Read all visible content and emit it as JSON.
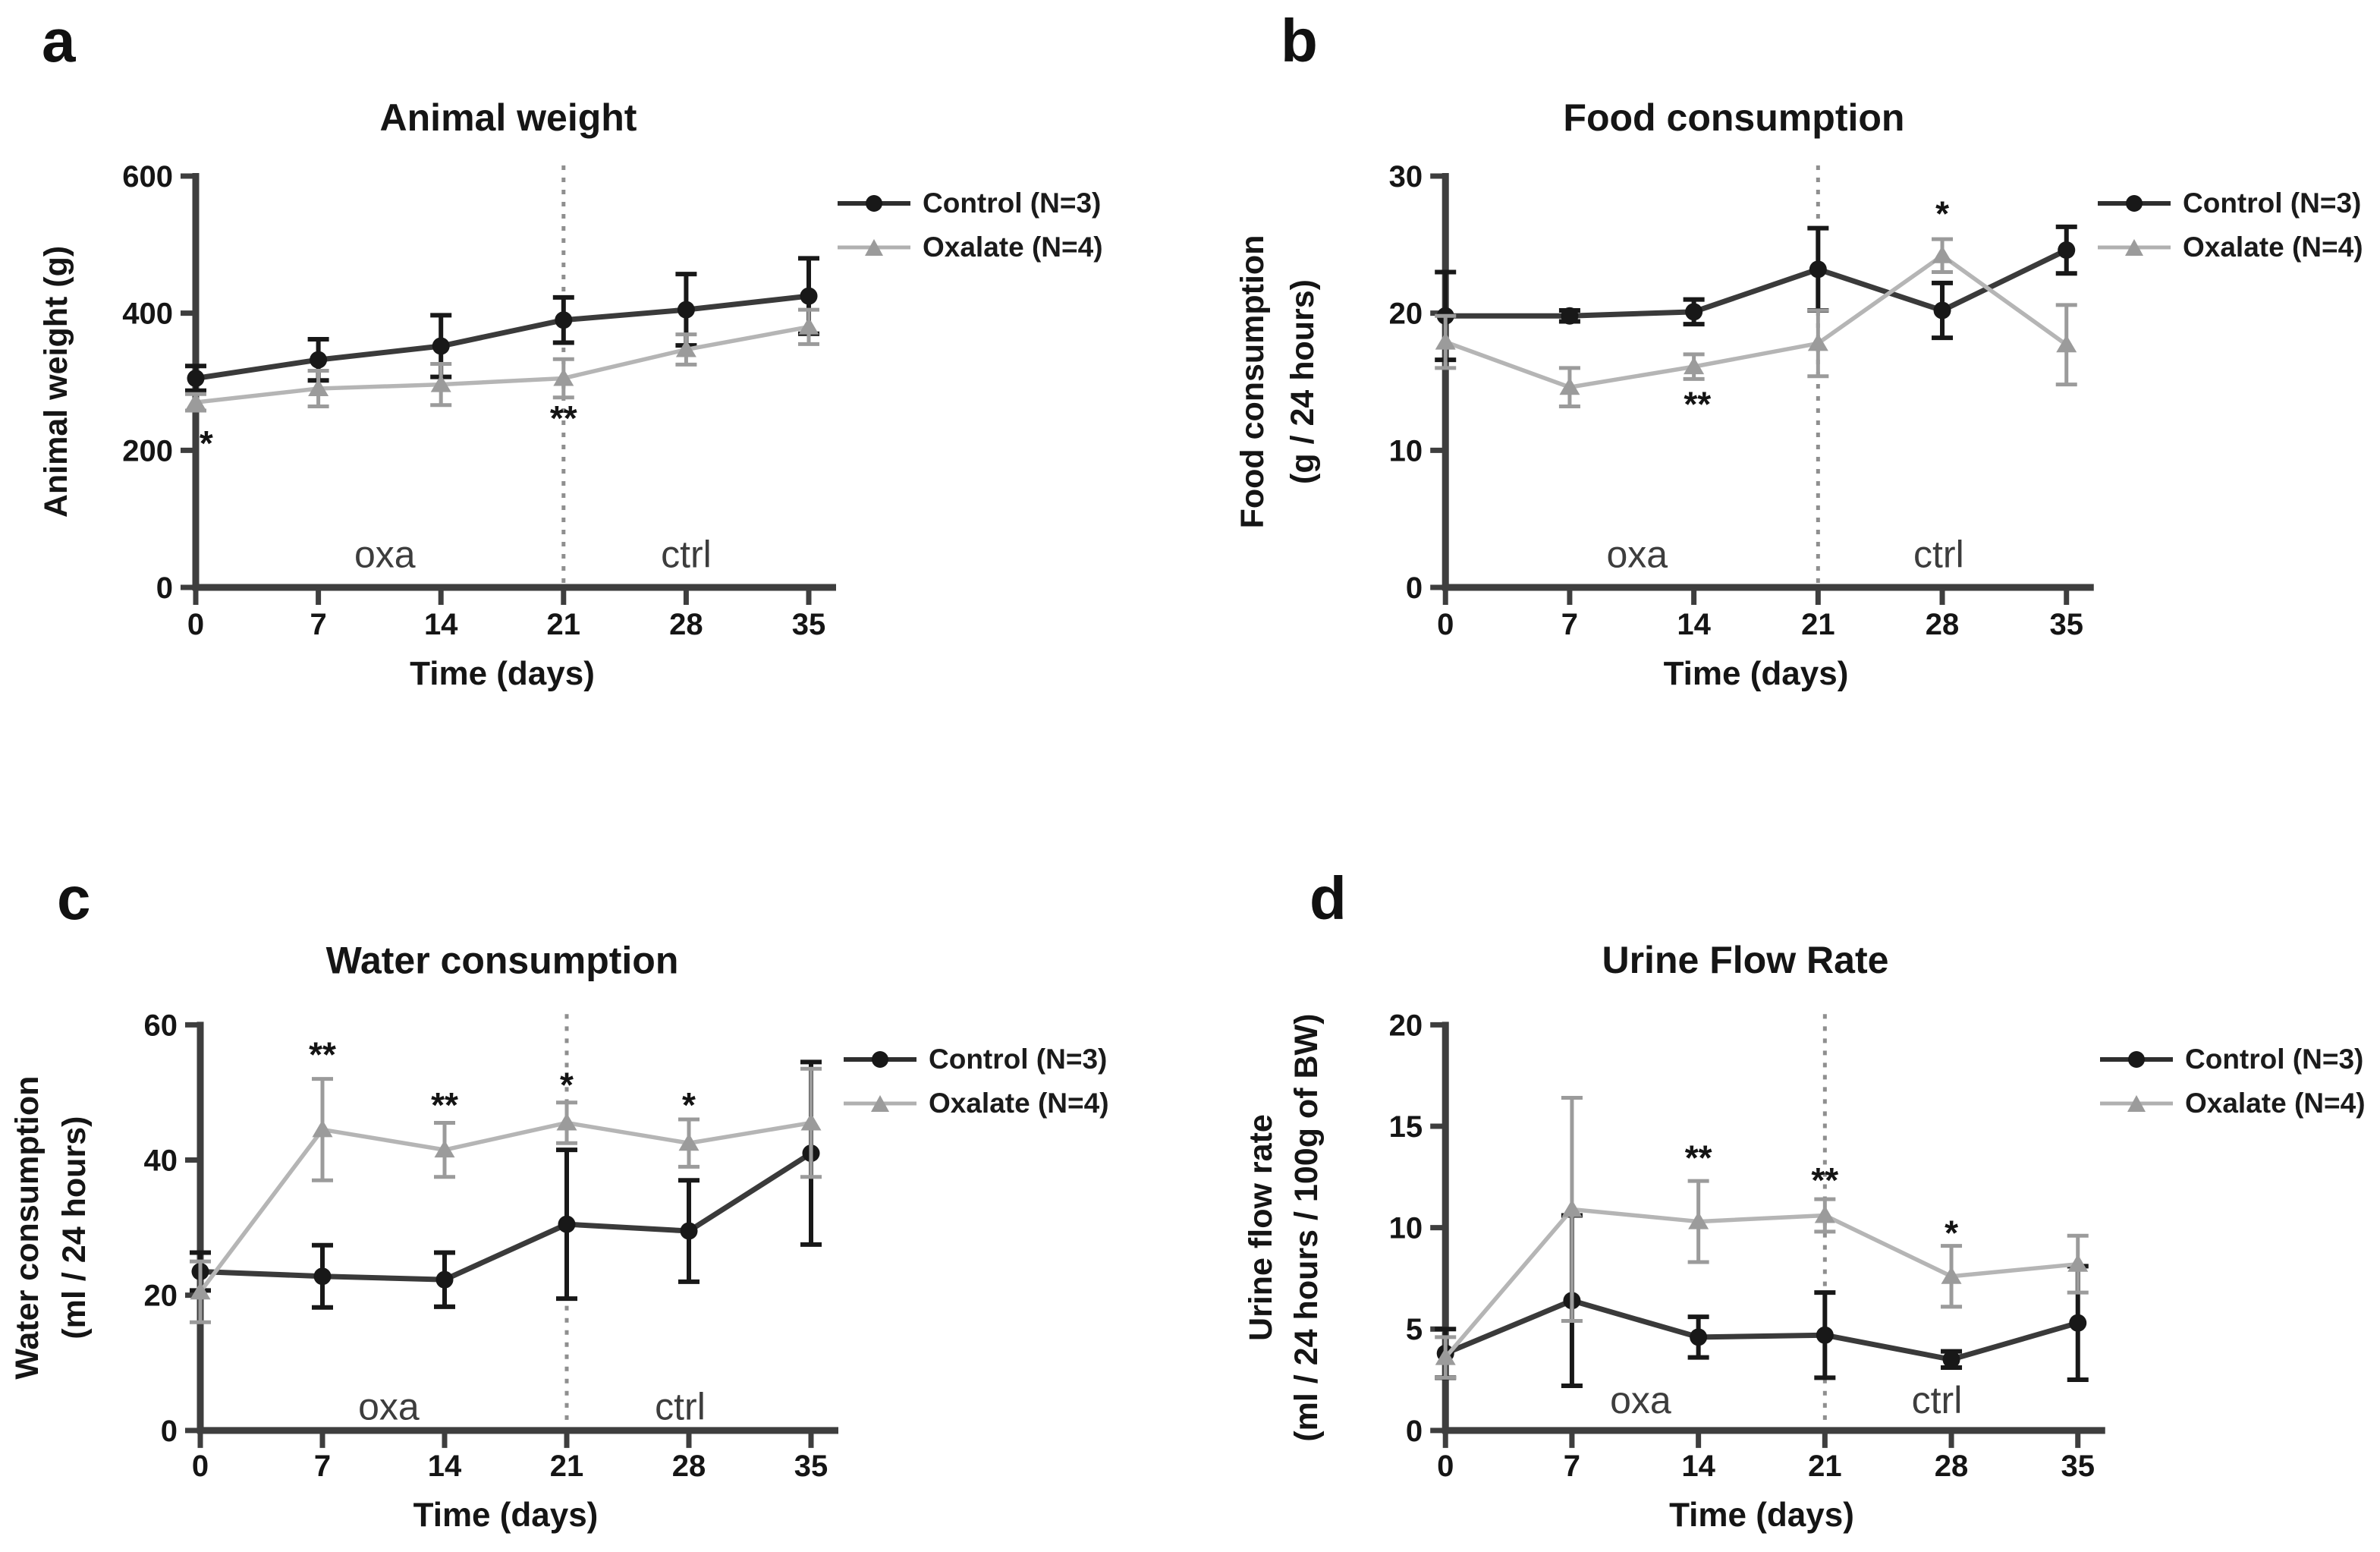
{
  "figure": {
    "background_color": "#ffffff",
    "axis_color": "#3e3e3e",
    "text_color": "#151515",
    "phase_label_color": "#3d3d3d",
    "dotted_line_color": "#8f8f8f"
  },
  "chart_data": [
    {
      "panel_letter": "a",
      "type": "line",
      "title": "Animal weight",
      "xlabel": "Time (days)",
      "ylabel_lines": [
        "Animal weight (g)"
      ],
      "x": [
        0,
        7,
        14,
        21,
        28,
        35
      ],
      "xticks": [
        0,
        7,
        14,
        21,
        28,
        35
      ],
      "yticks": [
        0,
        200,
        400,
        600
      ],
      "xlim": [
        0,
        35
      ],
      "ylim": [
        0,
        600
      ],
      "grid": false,
      "legend_position": "right",
      "treatment_switch_x": 21,
      "phase_labels": [
        {
          "text": "oxa",
          "x": 10.8,
          "y": 48
        },
        {
          "text": "ctrl",
          "x": 28,
          "y": 48
        }
      ],
      "significance": [
        {
          "text": "*",
          "x": 0.6,
          "y": 209
        },
        {
          "text": "**",
          "x": 21,
          "y": 246
        }
      ],
      "series": [
        {
          "name": "Control (N=3)",
          "marker": "circle",
          "color": "#181818",
          "line_color": "#3a3a3a",
          "values": [
            305,
            332,
            352,
            390,
            405,
            425
          ],
          "errors": [
            18,
            30,
            45,
            33,
            52,
            55
          ]
        },
        {
          "name": "Oxalate (N=4)",
          "marker": "triangle",
          "color": "#9b9b9b",
          "line_color": "#b5b5b5",
          "values": [
            270,
            290,
            296,
            305,
            347,
            380
          ],
          "errors": [
            12,
            26,
            30,
            28,
            22,
            25
          ]
        }
      ]
    },
    {
      "panel_letter": "b",
      "type": "line",
      "title": "Food consumption",
      "xlabel": "Time (days)",
      "ylabel_lines": [
        "Food consumption",
        "(g / 24 hours)"
      ],
      "x": [
        0,
        7,
        14,
        21,
        28,
        35
      ],
      "xticks": [
        0,
        7,
        14,
        21,
        28,
        35
      ],
      "yticks": [
        0,
        10,
        20,
        30
      ],
      "xlim": [
        0,
        35
      ],
      "ylim": [
        0,
        30
      ],
      "grid": false,
      "legend_position": "right",
      "treatment_switch_x": 21,
      "phase_labels": [
        {
          "text": "oxa",
          "x": 10.8,
          "y": 2.4
        },
        {
          "text": "ctrl",
          "x": 27.8,
          "y": 2.4
        }
      ],
      "significance": [
        {
          "text": "**",
          "x": 14.2,
          "y": 13.3
        },
        {
          "text": "*",
          "x": 28,
          "y": 27.2
        }
      ],
      "series": [
        {
          "name": "Control (N=3)",
          "marker": "circle",
          "color": "#181818",
          "line_color": "#3a3a3a",
          "values": [
            19.8,
            19.8,
            20.1,
            23.2,
            20.2,
            24.6
          ],
          "errors": [
            3.2,
            0.4,
            0.9,
            3.0,
            2.0,
            1.7
          ]
        },
        {
          "name": "Oxalate (N=4)",
          "marker": "triangle",
          "color": "#9b9b9b",
          "line_color": "#b5b5b5",
          "values": [
            17.9,
            14.6,
            16.1,
            17.8,
            24.2,
            17.7
          ],
          "errors": [
            1.9,
            1.4,
            0.9,
            2.4,
            1.2,
            2.9
          ]
        }
      ]
    },
    {
      "panel_letter": "c",
      "type": "line",
      "title": "Water consumption",
      "xlabel": "Time (days)",
      "ylabel_lines": [
        "Water consumption",
        "(ml / 24 hours)"
      ],
      "x": [
        0,
        7,
        14,
        21,
        28,
        35
      ],
      "xticks": [
        0,
        7,
        14,
        21,
        28,
        35
      ],
      "yticks": [
        0,
        20,
        40,
        60
      ],
      "xlim": [
        0,
        35
      ],
      "ylim": [
        0,
        60
      ],
      "grid": false,
      "legend_position": "right",
      "treatment_switch_x": 21,
      "phase_labels": [
        {
          "text": "oxa",
          "x": 10.8,
          "y": 3.5
        },
        {
          "text": "ctrl",
          "x": 27.5,
          "y": 3.5
        }
      ],
      "significance": [
        {
          "text": "**",
          "x": 7,
          "y": 55.5
        },
        {
          "text": "**",
          "x": 14,
          "y": 48
        },
        {
          "text": "*",
          "x": 21,
          "y": 51
        },
        {
          "text": "*",
          "x": 28,
          "y": 48
        }
      ],
      "series": [
        {
          "name": "Control (N=3)",
          "marker": "circle",
          "color": "#181818",
          "line_color": "#3a3a3a",
          "values": [
            23.5,
            22.8,
            22.3,
            30.5,
            29.5,
            41.0
          ],
          "errors": [
            2.8,
            4.6,
            4.0,
            11.0,
            7.5,
            13.5
          ]
        },
        {
          "name": "Oxalate (N=4)",
          "marker": "triangle",
          "color": "#9b9b9b",
          "line_color": "#b5b5b5",
          "values": [
            20.5,
            44.5,
            41.5,
            45.5,
            42.5,
            45.5
          ],
          "errors": [
            4.5,
            7.5,
            4.0,
            3.0,
            3.5,
            8.0
          ]
        }
      ]
    },
    {
      "panel_letter": "d",
      "type": "line",
      "title": "Urine Flow Rate",
      "xlabel": "Time (days)",
      "ylabel_lines": [
        "Urine flow rate",
        "(ml / 24 hours / 100g of BW)"
      ],
      "x": [
        0,
        7,
        14,
        21,
        28,
        35
      ],
      "xticks": [
        0,
        7,
        14,
        21,
        28,
        35
      ],
      "yticks": [
        0,
        5,
        10,
        15,
        20
      ],
      "xlim": [
        0,
        35
      ],
      "ylim": [
        0,
        20
      ],
      "grid": false,
      "legend_position": "right",
      "treatment_switch_x": 21,
      "phase_labels": [
        {
          "text": "oxa",
          "x": 10.8,
          "y": 1.5
        },
        {
          "text": "ctrl",
          "x": 27.2,
          "y": 1.5
        }
      ],
      "significance": [
        {
          "text": "**",
          "x": 14,
          "y": 13.4
        },
        {
          "text": "**",
          "x": 21,
          "y": 12.3
        },
        {
          "text": "*",
          "x": 28,
          "y": 9.7
        }
      ],
      "series": [
        {
          "name": "Control (N=3)",
          "marker": "circle",
          "color": "#181818",
          "line_color": "#3a3a3a",
          "values": [
            3.8,
            6.4,
            4.6,
            4.7,
            3.5,
            5.3
          ],
          "errors": [
            1.2,
            4.2,
            1.0,
            2.1,
            0.4,
            2.8
          ]
        },
        {
          "name": "Oxalate (N=4)",
          "marker": "triangle",
          "color": "#9b9b9b",
          "line_color": "#b5b5b5",
          "values": [
            3.6,
            10.9,
            10.3,
            10.6,
            7.6,
            8.2
          ],
          "errors": [
            1.0,
            5.5,
            2.0,
            0.8,
            1.5,
            1.4
          ]
        }
      ]
    }
  ]
}
